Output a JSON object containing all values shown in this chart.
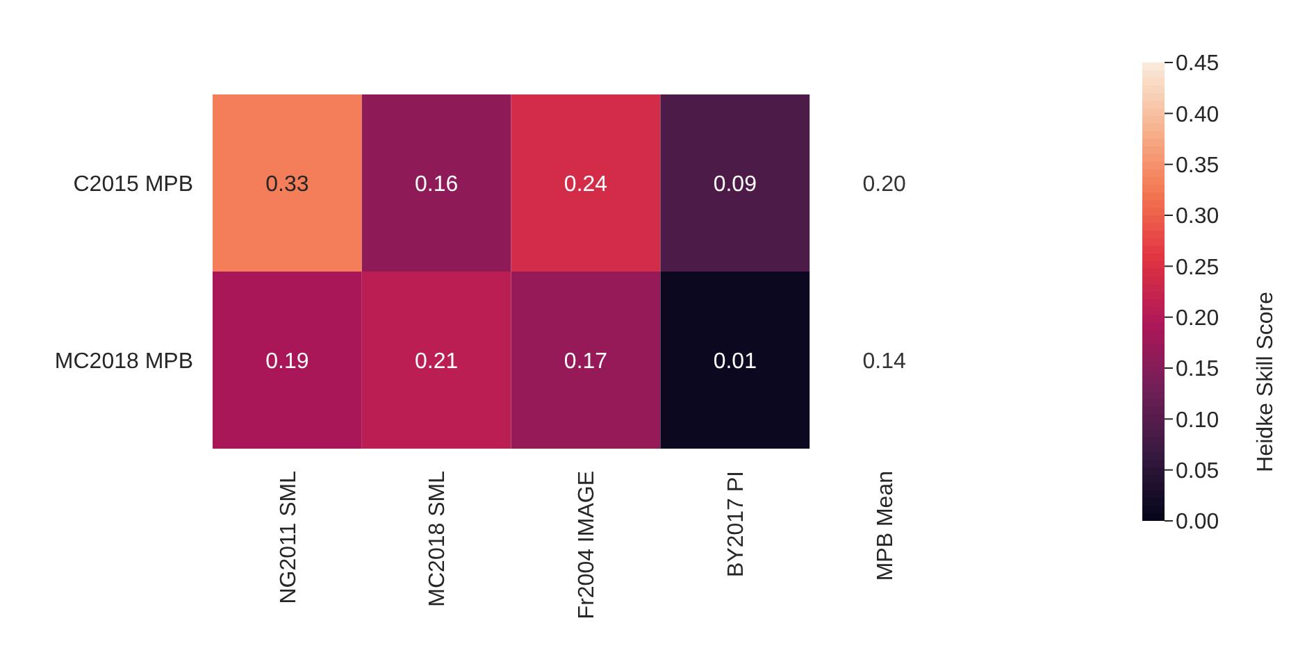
{
  "chart_data": {
    "type": "heatmap",
    "categories": [
      "NG2011 SML",
      "MC2018 SML",
      "Fr2004 IMAGE",
      "BY2017 PI",
      "MPB Mean"
    ],
    "y_categories": [
      "C2015 MPB",
      "MC2018 MPB"
    ],
    "cells": [
      [
        0.33,
        0.16,
        0.24,
        0.09,
        null
      ],
      [
        0.19,
        0.21,
        0.17,
        0.01,
        null
      ]
    ],
    "cell_labels": [
      [
        "0.33",
        "0.16",
        "0.24",
        "0.09",
        "0.20"
      ],
      [
        "0.19",
        "0.21",
        "0.17",
        "0.01",
        "0.14"
      ]
    ],
    "data_labels": true,
    "clabel": "Heidke Skill Score",
    "clim": [
      0,
      0.45
    ],
    "cticks": [
      {
        "value": 0,
        "label": "0.00"
      },
      {
        "value": 0.05,
        "label": "0.05"
      },
      {
        "value": 0.1,
        "label": "0.10"
      },
      {
        "value": 0.15,
        "label": "0.15"
      },
      {
        "value": 0.2,
        "label": "0.20"
      },
      {
        "value": 0.25,
        "label": "0.25"
      },
      {
        "value": 0.3,
        "label": "0.30"
      },
      {
        "value": 0.35,
        "label": "0.35"
      },
      {
        "value": 0.4,
        "label": "0.40"
      },
      {
        "value": 0.45,
        "label": "0.45"
      }
    ]
  }
}
